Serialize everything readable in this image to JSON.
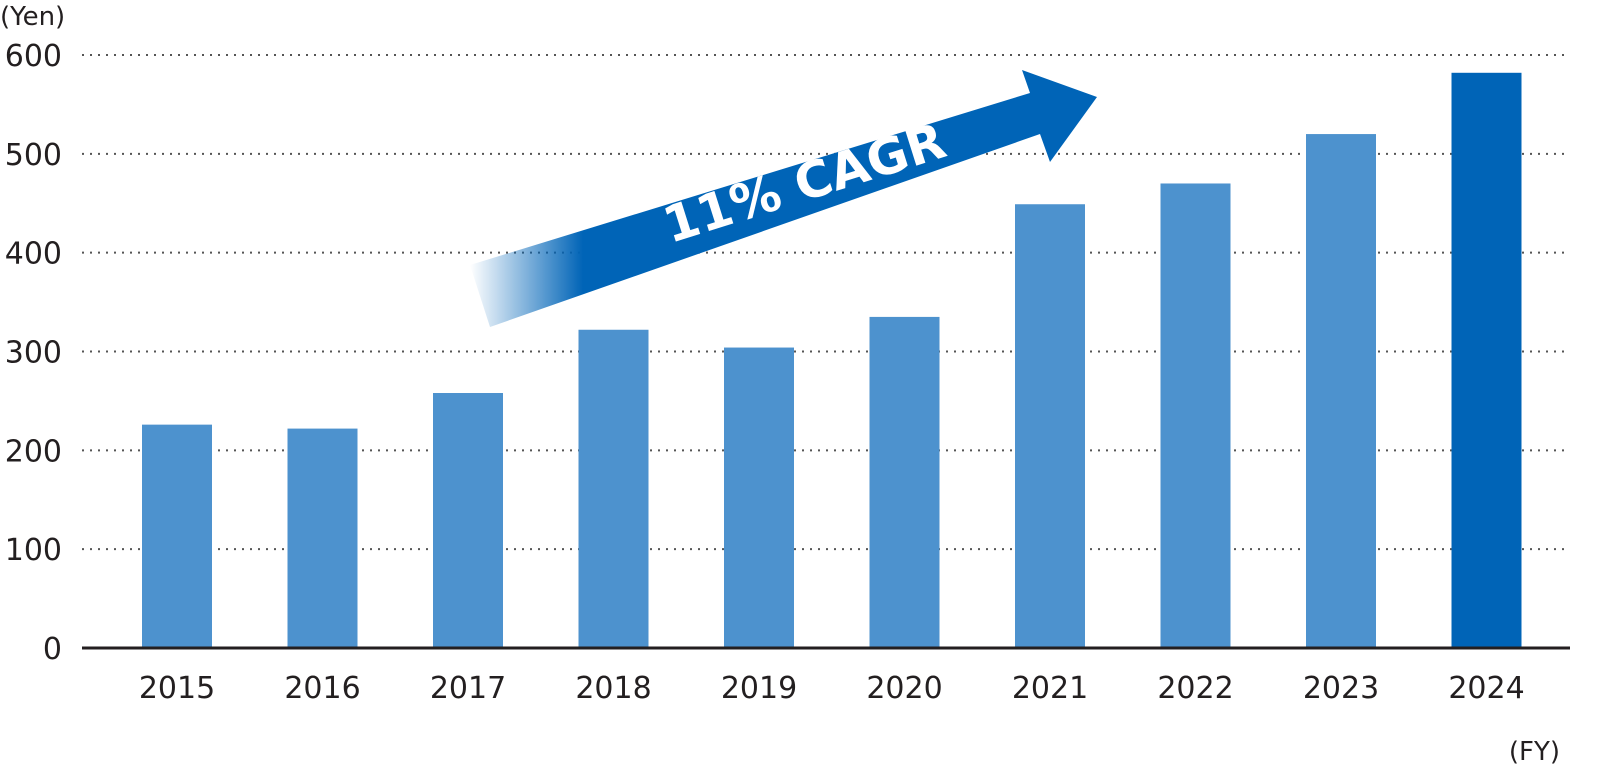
{
  "chart_data": {
    "type": "bar",
    "y_unit_label": "(Yen)",
    "x_unit_label": "(FY)",
    "categories": [
      "2015",
      "2016",
      "2017",
      "2018",
      "2019",
      "2020",
      "2021",
      "2022",
      "2023",
      "2024"
    ],
    "values": [
      226,
      222,
      258,
      322,
      304,
      335,
      449,
      470,
      520,
      582
    ],
    "ylim": [
      0,
      600
    ],
    "yticks": [
      0,
      100,
      200,
      300,
      400,
      500,
      600
    ],
    "grid": "horizontal dotted",
    "annotation": "11% CAGR",
    "colors": {
      "bar": "#4d92ce",
      "highlight_bar": "#0064b7",
      "arrow": "#0064b7",
      "grid": "#555555",
      "axis": "#231f20"
    },
    "highlight_category": "2024"
  }
}
